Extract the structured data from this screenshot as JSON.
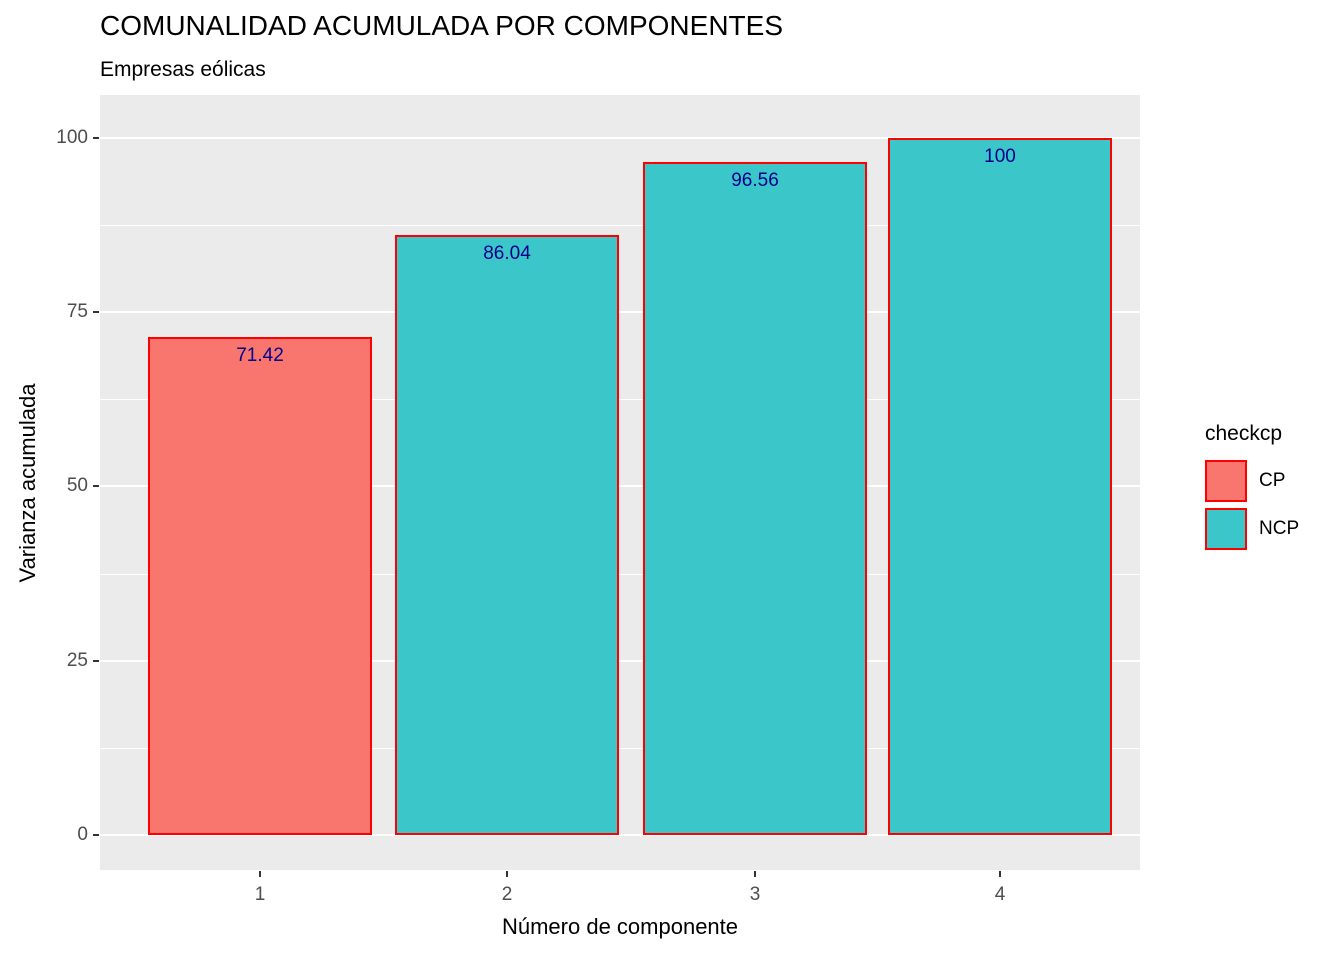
{
  "chart_data": {
    "type": "bar",
    "title": "COMUNALIDAD ACUMULADA POR COMPONENTES",
    "subtitle": "Empresas eólicas",
    "xlabel": "Número de componente",
    "ylabel": "Varianza acumulada",
    "categories": [
      "1",
      "2",
      "3",
      "4"
    ],
    "values": [
      71.42,
      86.04,
      96.56,
      100
    ],
    "bar_labels": [
      "71.42",
      "86.04",
      "96.56",
      "100"
    ],
    "groups": [
      "CP",
      "NCP",
      "NCP",
      "NCP"
    ],
    "ylim": [
      0,
      100
    ],
    "yticks": [
      0,
      25,
      50,
      75,
      100
    ],
    "ytick_labels": [
      "0",
      "25",
      "50",
      "75",
      "100"
    ],
    "grid": true,
    "legend": {
      "title": "checkcp",
      "position": "right",
      "entries": [
        {
          "label": "CP",
          "fill": "#F8766D"
        },
        {
          "label": "NCP",
          "fill": "#3BC6C9"
        }
      ]
    },
    "colors": {
      "cp_fill": "#F8766D",
      "ncp_fill": "#3BC6C9",
      "bar_border": "#FF0000",
      "label_color": "#00008B",
      "panel_bg": "#EBEBEB",
      "grid_color": "#FFFFFF",
      "tick_text": "#4D4D4D"
    }
  }
}
